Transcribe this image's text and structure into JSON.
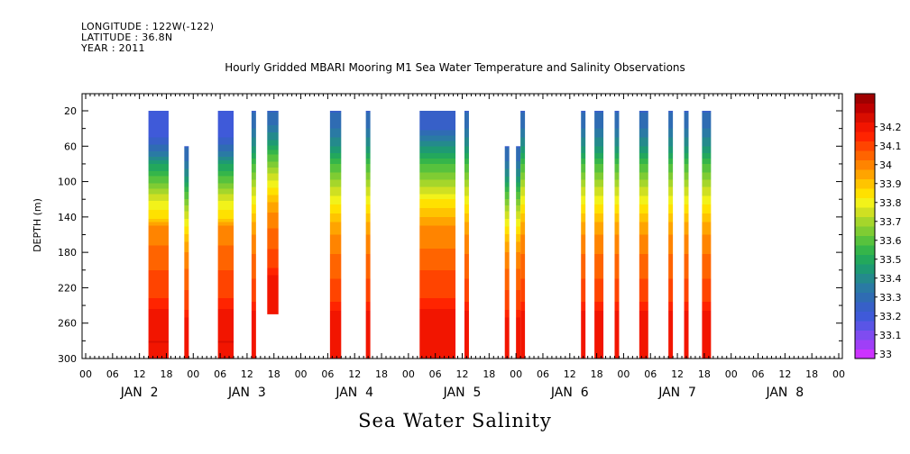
{
  "header": {
    "longitude": "LONGITUDE : 122W(-122)",
    "latitude": "LATITUDE : 36.8N",
    "year": "YEAR : 2011"
  },
  "chart_data": {
    "type": "heatmap",
    "title": "Hourly Gridded MBARI Mooring M1 Sea Water Temperature and Salinity Observations",
    "xlabel": "Sea Water Salinity",
    "ylabel": "DEPTH (m)",
    "x_unit": "hours since 2011-01-02 00:00",
    "xlim": [
      0,
      168
    ],
    "ylim": [
      0,
      300
    ],
    "y_reversed": true,
    "y_ticks": [
      20,
      60,
      100,
      140,
      180,
      220,
      260,
      300
    ],
    "x_hour_labels": [
      "00",
      "06",
      "12",
      "18",
      "00",
      "06",
      "12",
      "18",
      "00",
      "06",
      "12",
      "18",
      "00",
      "06",
      "12",
      "18",
      "00",
      "06",
      "12",
      "18",
      "00",
      "06",
      "12",
      "18",
      "00",
      "06",
      "12",
      "18",
      "00"
    ],
    "day_labels": [
      "JAN  2",
      "JAN  3",
      "JAN  4",
      "JAN  5",
      "JAN  6",
      "JAN  7",
      "JAN  8"
    ],
    "colorbar": {
      "labels": [
        "33",
        "33.1",
        "33.2",
        "33.3",
        "33.4",
        "33.5",
        "33.6",
        "33.7",
        "33.8",
        "33.9",
        "34",
        "34.1",
        "34.2"
      ],
      "min": 33.0,
      "max": 34.3,
      "step": 0.05,
      "colors": [
        "#cc33ff",
        "#9f3ff7",
        "#7f4cf0",
        "#5a55e6",
        "#3f5ad9",
        "#3760c8",
        "#2f6cb3",
        "#2a7aa4",
        "#248a8c",
        "#1e9a73",
        "#23a85c",
        "#35b54a",
        "#57c23d",
        "#7fcc33",
        "#a5d62b",
        "#cfe022",
        "#f2f21a",
        "#ffe100",
        "#ffc400",
        "#ffa400",
        "#ff8400",
        "#ff6400",
        "#ff4400",
        "#ff2400",
        "#f21500",
        "#d90d00",
        "#bf0000",
        "#a00000"
      ]
    },
    "segments": [
      {
        "start": 14.0,
        "end": 18.5,
        "top": 20,
        "bottom": 300,
        "profile": "A"
      },
      {
        "start": 22.0,
        "end": 23.0,
        "top": 60,
        "bottom": 300,
        "profile": "C"
      },
      {
        "start": 29.5,
        "end": 33.0,
        "top": 20,
        "bottom": 300,
        "profile": "A"
      },
      {
        "start": 37.0,
        "end": 38.0,
        "top": 20,
        "bottom": 300,
        "profile": "C"
      },
      {
        "start": 40.5,
        "end": 43.0,
        "top": 20,
        "bottom": 250,
        "profile": "C"
      },
      {
        "start": 54.5,
        "end": 57.0,
        "top": 20,
        "bottom": 300,
        "profile": "C"
      },
      {
        "start": 62.5,
        "end": 63.5,
        "top": 20,
        "bottom": 300,
        "profile": "C"
      },
      {
        "start": 74.5,
        "end": 82.5,
        "top": 20,
        "bottom": 300,
        "profile": "B"
      },
      {
        "start": 84.5,
        "end": 85.5,
        "top": 20,
        "bottom": 300,
        "profile": "C"
      },
      {
        "start": 93.5,
        "end": 94.5,
        "top": 60,
        "bottom": 300,
        "profile": "C"
      },
      {
        "start": 96.0,
        "end": 97.0,
        "top": 60,
        "bottom": 300,
        "profile": "C"
      },
      {
        "start": 97.0,
        "end": 98.0,
        "top": 20,
        "bottom": 300,
        "profile": "C"
      },
      {
        "start": 110.5,
        "end": 111.5,
        "top": 20,
        "bottom": 300,
        "profile": "C"
      },
      {
        "start": 113.5,
        "end": 115.5,
        "top": 20,
        "bottom": 300,
        "profile": "C"
      },
      {
        "start": 118.0,
        "end": 119.0,
        "top": 20,
        "bottom": 300,
        "profile": "C"
      },
      {
        "start": 123.5,
        "end": 125.5,
        "top": 20,
        "bottom": 300,
        "profile": "C"
      },
      {
        "start": 130.0,
        "end": 131.0,
        "top": 20,
        "bottom": 300,
        "profile": "C"
      },
      {
        "start": 133.5,
        "end": 134.5,
        "top": 20,
        "bottom": 300,
        "profile": "C"
      },
      {
        "start": 137.5,
        "end": 139.5,
        "top": 20,
        "bottom": 300,
        "profile": "C"
      }
    ],
    "profiles": {
      "A": [
        [
          20,
          33.22
        ],
        [
          50,
          33.25
        ],
        [
          65,
          33.35
        ],
        [
          80,
          33.5
        ],
        [
          100,
          33.65
        ],
        [
          120,
          33.8
        ],
        [
          140,
          33.9
        ],
        [
          150,
          34.0
        ],
        [
          170,
          34.05
        ],
        [
          200,
          34.1
        ],
        [
          230,
          34.15
        ],
        [
          250,
          34.23
        ],
        [
          280,
          34.25
        ],
        [
          300,
          34.2
        ]
      ],
      "B": [
        [
          20,
          33.28
        ],
        [
          40,
          33.3
        ],
        [
          60,
          33.45
        ],
        [
          80,
          33.6
        ],
        [
          100,
          33.72
        ],
        [
          120,
          33.85
        ],
        [
          135,
          33.93
        ],
        [
          150,
          34.0
        ],
        [
          175,
          34.05
        ],
        [
          200,
          34.1
        ],
        [
          230,
          34.15
        ],
        [
          255,
          34.25
        ],
        [
          280,
          34.22
        ],
        [
          300,
          34.2
        ]
      ],
      "C": [
        [
          20,
          33.3
        ],
        [
          40,
          33.35
        ],
        [
          60,
          33.45
        ],
        [
          80,
          33.6
        ],
        [
          100,
          33.72
        ],
        [
          120,
          33.83
        ],
        [
          135,
          33.9
        ],
        [
          150,
          33.98
        ],
        [
          180,
          34.05
        ],
        [
          210,
          34.1
        ],
        [
          235,
          34.15
        ],
        [
          255,
          34.25
        ],
        [
          275,
          34.22
        ],
        [
          300,
          34.2
        ]
      ]
    }
  }
}
